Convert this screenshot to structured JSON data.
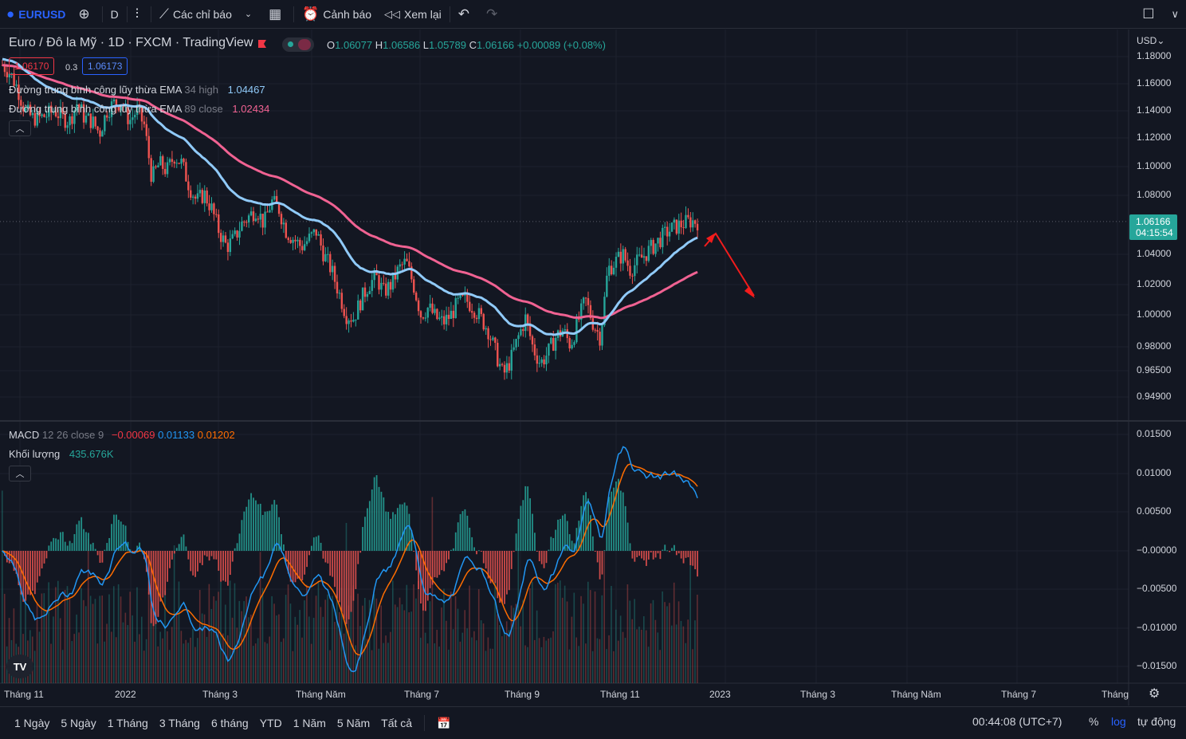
{
  "toolbar": {
    "symbol": "EURUSD",
    "interval": "D",
    "indicators_label": "Các chỉ báo",
    "alerts_label": "Cảnh báo",
    "replay_label": "Xem lại"
  },
  "legend": {
    "title": "Euro / Đô la Mỹ · 1D · FXCM · TradingView",
    "open_key": "O",
    "open": "1.06077",
    "high_key": "H",
    "high": "1.06586",
    "low_key": "L",
    "low": "1.05789",
    "close_key": "C",
    "close": "1.06166",
    "change": "+0.00089 (+0.08%)",
    "bid": "1.06170",
    "spread": "0.3",
    "ask": "1.06173"
  },
  "indicators": {
    "ema34_name": "Đường trung bình công lũy thừa EMA",
    "ema34_params": "34 high",
    "ema34_value": "1.04467",
    "ema34_color": "#90caf9",
    "ema89_name": "Đường trung bình công lũy thừa EMA",
    "ema89_params": "89 close",
    "ema89_value": "1.02434",
    "ema89_color": "#f06292",
    "macd_name": "MACD",
    "macd_params": "12 26 close 9",
    "macd_hist": "−0.00069",
    "macd_line": "0.01133",
    "macd_signal": "0.01202",
    "volume_name": "Khối lượng",
    "volume_value": "435.676K"
  },
  "price_axis": {
    "currency": "USD",
    "labels": [
      "1.18000",
      "1.16000",
      "1.14000",
      "1.12000",
      "1.10000",
      "1.08000",
      "1.04000",
      "1.02000",
      "1.00000",
      "0.98000",
      "0.96500",
      "0.94900"
    ],
    "last_price": "1.06166",
    "countdown": "04:15:54"
  },
  "macd_axis": {
    "labels": [
      "0.01500",
      "0.01000",
      "0.00500",
      "−0.00000",
      "−0.00500",
      "−0.01000",
      "−0.01500"
    ]
  },
  "time_axis": {
    "labels": [
      "Tháng 11",
      "2022",
      "Tháng 3",
      "Tháng Năm",
      "Tháng 7",
      "Tháng 9",
      "Tháng 11",
      "2023",
      "Tháng 3",
      "Tháng Năm",
      "Tháng 7",
      "Tháng"
    ]
  },
  "bottom": {
    "ranges": [
      "1 Ngày",
      "5 Ngày",
      "1 Tháng",
      "3 Tháng",
      "6 tháng",
      "YTD",
      "1 Năm",
      "5 Năm",
      "Tất cả"
    ],
    "clock": "00:44:08 (UTC+7)",
    "percent": "%",
    "log": "log",
    "auto": "tự động"
  },
  "colors": {
    "up": "#26a69a",
    "down": "#ef5350",
    "macd_line": "#2196f3",
    "signal_line": "#ff6d00",
    "annotation_arrow": "#f21c1c"
  },
  "chart_data": {
    "type": "candlestick",
    "title": "Euro / Đô la Mỹ · 1D · FXCM · TradingView",
    "series": [
      {
        "name": "EMA 34 high",
        "last": 1.04467
      },
      {
        "name": "EMA 89 close",
        "last": 1.02434
      }
    ],
    "close_path": [
      1.165,
      1.16,
      1.15,
      1.135,
      1.13,
      1.13,
      1.132,
      1.135,
      1.13,
      1.128,
      1.14,
      1.13,
      1.128,
      1.12,
      1.135,
      1.14,
      1.14,
      1.128,
      1.135,
      1.125,
      1.09,
      1.1,
      1.095,
      1.105,
      1.1,
      1.085,
      1.075,
      1.08,
      1.07,
      1.055,
      1.045,
      1.05,
      1.06,
      1.065,
      1.07,
      1.06,
      1.075,
      1.07,
      1.055,
      1.05,
      1.045,
      1.05,
      1.055,
      1.04,
      1.03,
      1.015,
      1.0,
      0.998,
      1.01,
      1.02,
      1.025,
      1.015,
      1.02,
      1.03,
      1.035,
      1.02,
      1.0,
      1.005,
      0.998,
      0.995,
      1.0,
      1.008,
      1.01,
      1.005,
      0.998,
      0.99,
      0.975,
      0.96,
      0.97,
      0.985,
      0.998,
      0.978,
      0.968,
      0.975,
      0.985,
      0.99,
      0.98,
      0.995,
      1.01,
      0.995,
      0.985,
      1.03,
      1.035,
      1.04,
      1.03,
      1.035,
      1.04,
      1.045,
      1.05,
      1.055,
      1.058,
      1.06,
      1.062,
      1.06166
    ],
    "xlabels": [
      "Tháng 11",
      "2022",
      "Tháng 3",
      "Tháng Năm",
      "Tháng 7",
      "Tháng 9",
      "Tháng 11",
      "2023",
      "Tháng 3",
      "Tháng Năm",
      "Tháng 7",
      "Tháng"
    ],
    "macd_range": [
      -0.016,
      0.0155
    ],
    "macd_last": 0.01133,
    "signal_last": 0.01202,
    "hist_last": -0.00069
  }
}
